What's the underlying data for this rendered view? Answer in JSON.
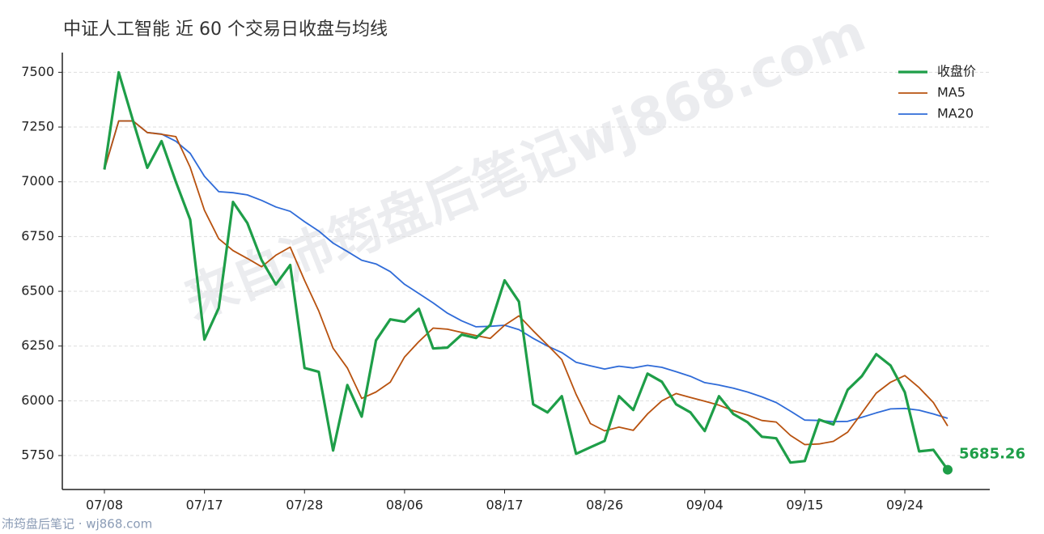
{
  "chart_data": {
    "type": "line",
    "title": "中证人工智能 近 60 个交易日收盘与均线",
    "watermark": "来自沛筠盘后笔记wj868.com",
    "footer": "沛筠盘后笔记 · wj868.com",
    "categories": [
      "07/08",
      null,
      null,
      null,
      null,
      null,
      null,
      "07/17",
      null,
      null,
      null,
      null,
      null,
      null,
      "07/28",
      null,
      null,
      null,
      null,
      null,
      null,
      "08/06",
      null,
      null,
      null,
      null,
      null,
      null,
      "08/17",
      null,
      null,
      null,
      null,
      null,
      null,
      "08/26",
      null,
      null,
      null,
      null,
      null,
      null,
      "09/04",
      null,
      null,
      null,
      null,
      null,
      null,
      "09/15",
      null,
      null,
      null,
      null,
      null,
      null,
      "09/24",
      null,
      null,
      null
    ],
    "series": [
      {
        "name": "收盘价",
        "color": "#1e9e48",
        "width": 3.2,
        "values": [
          7056,
          7500,
          7280,
          7064,
          7186,
          7000,
          6827,
          6280,
          6424,
          6908,
          6812,
          6642,
          6531,
          6620,
          6150,
          6132,
          5773,
          6072,
          5928,
          6276,
          6372,
          6361,
          6420,
          6239,
          6243,
          6302,
          6287,
          6346,
          6550,
          6453,
          5984,
          5947,
          6021,
          5758,
          5788,
          5817,
          6021,
          5958,
          6124,
          6087,
          5984,
          5947,
          5862,
          6021,
          5940,
          5902,
          5836,
          5829,
          5718,
          5725,
          5914,
          5892,
          6050,
          6113,
          6213,
          6161,
          6039,
          5769,
          5776,
          5685.26
        ]
      },
      {
        "name": "MA5",
        "color": "#b8520f",
        "width": 1.8,
        "values": [
          7056,
          7278,
          7278,
          7225,
          7217,
          7206,
          7066,
          6870,
          6740,
          6686,
          6650,
          6612,
          6665,
          6702,
          6550,
          6410,
          6240,
          6150,
          6011,
          6040,
          6085,
          6200,
          6270,
          6332,
          6327,
          6312,
          6298,
          6285,
          6345,
          6388,
          6320,
          6255,
          6188,
          6030,
          5896,
          5863,
          5880,
          5865,
          5940,
          6000,
          6033,
          6015,
          5998,
          5980,
          5955,
          5935,
          5910,
          5903,
          5842,
          5800,
          5803,
          5815,
          5857,
          5945,
          6035,
          6085,
          6115,
          6060,
          5992,
          5885
        ]
      },
      {
        "name": "MA20",
        "color": "#2f6bd8",
        "width": 1.8,
        "values": [
          7056,
          7278,
          7278,
          7225,
          7218,
          7185,
          7130,
          7025,
          6955,
          6950,
          6940,
          6915,
          6885,
          6865,
          6818,
          6775,
          6720,
          6682,
          6642,
          6625,
          6590,
          6532,
          6490,
          6447,
          6400,
          6365,
          6338,
          6340,
          6345,
          6325,
          6285,
          6250,
          6220,
          6176,
          6160,
          6145,
          6158,
          6150,
          6162,
          6153,
          6133,
          6112,
          6083,
          6072,
          6058,
          6040,
          6018,
          5992,
          5953,
          5912,
          5910,
          5905,
          5906,
          5925,
          5945,
          5963,
          5965,
          5957,
          5940,
          5920
        ]
      }
    ],
    "ylim": [
      5595,
      7590
    ],
    "yticks": [
      5750,
      6000,
      6250,
      6500,
      6750,
      7000,
      7250,
      7500
    ],
    "grid": true,
    "legend": "upper-right"
  }
}
